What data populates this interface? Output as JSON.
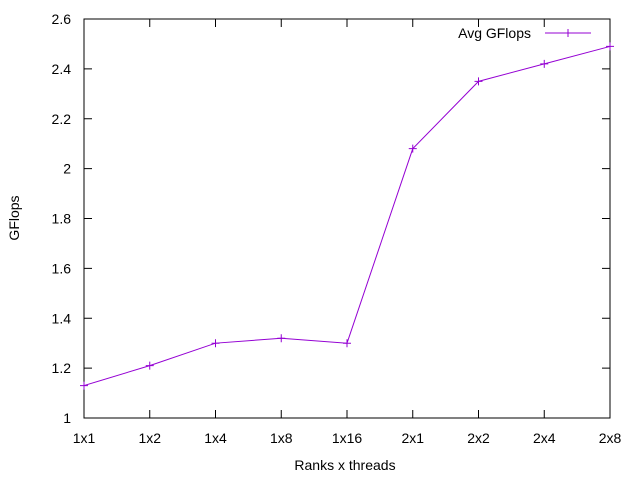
{
  "chart_data": {
    "type": "line",
    "title": "",
    "xlabel": "Ranks x threads",
    "ylabel": "GFlops",
    "categories": [
      "1x1",
      "1x2",
      "1x4",
      "1x8",
      "1x16",
      "2x1",
      "2x2",
      "2x4",
      "2x8"
    ],
    "ylim": [
      1,
      2.6
    ],
    "yticks": [
      "1",
      "1.2",
      "1.4",
      "1.6",
      "1.8",
      "2",
      "2.2",
      "2.4",
      "2.6"
    ],
    "grid": false,
    "legend_position": "top-right",
    "series": [
      {
        "name": "Avg GFlops",
        "color": "#9400d3",
        "marker": "plus",
        "values": [
          1.13,
          1.21,
          1.3,
          1.32,
          1.3,
          2.08,
          2.35,
          2.42,
          2.49
        ]
      }
    ]
  }
}
